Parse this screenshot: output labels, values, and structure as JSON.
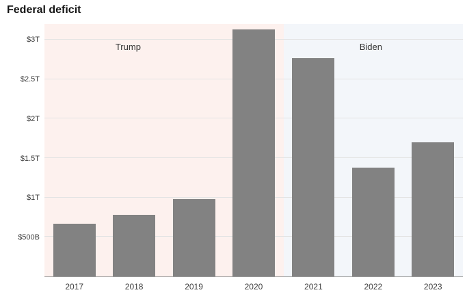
{
  "page": {
    "title": "Federal deficit"
  },
  "chart_data": {
    "type": "bar",
    "title": "Federal deficit",
    "categories": [
      "2017",
      "2018",
      "2019",
      "2020",
      "2021",
      "2022",
      "2023"
    ],
    "values": [
      0.665,
      0.779,
      0.984,
      3.13,
      2.77,
      1.38,
      1.7
    ],
    "unit": "trillions USD",
    "xlabel": "",
    "ylabel": "",
    "ylim": [
      0,
      3.2
    ],
    "grid": true,
    "bar_color": "#828282",
    "axis_line_color": "#9a9a9a",
    "yticks": [
      {
        "value": 0.5,
        "label": "$500B"
      },
      {
        "value": 1,
        "label": "$1T"
      },
      {
        "value": 1.5,
        "label": "$1.5T"
      },
      {
        "value": 2,
        "label": "$2T"
      },
      {
        "value": 2.5,
        "label": "$2.5T"
      },
      {
        "value": 3,
        "label": "$3T"
      }
    ],
    "regions": [
      {
        "label": "Trump",
        "start_index": 0,
        "end_index": 4,
        "color": "#fdf1ee",
        "label_x_frac": 0.2
      },
      {
        "label": "Biden",
        "start_index": 4,
        "end_index": 7,
        "color": "#f3f6fa",
        "label_x_frac": 0.78
      }
    ]
  }
}
